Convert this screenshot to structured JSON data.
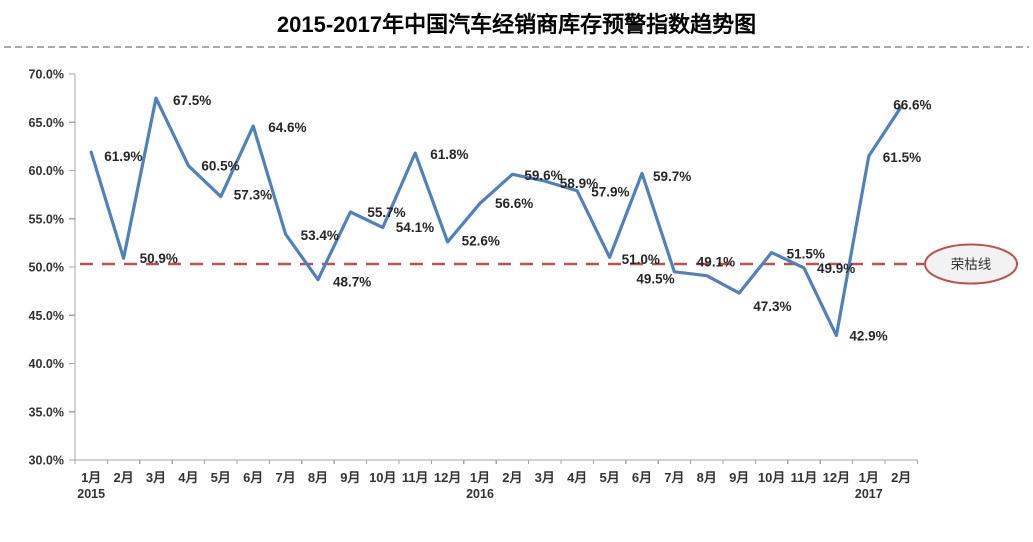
{
  "page": {
    "background": "#FFFFFF"
  },
  "chart_data": {
    "type": "line",
    "title": "2015-2017年中国汽车经销商库存预警指数趋势图",
    "categories": [
      "1月",
      "2月",
      "3月",
      "4月",
      "5月",
      "6月",
      "7月",
      "8月",
      "9月",
      "10月",
      "11月",
      "12月",
      "1月",
      "2月",
      "3月",
      "4月",
      "5月",
      "6月",
      "7月",
      "8月",
      "9月",
      "10月",
      "11月",
      "12月",
      "1月",
      "2月"
    ],
    "year_labels": [
      {
        "index": 0,
        "label": "2015"
      },
      {
        "index": 12,
        "label": "2016"
      },
      {
        "index": 24,
        "label": "2017"
      }
    ],
    "values": [
      61.9,
      50.9,
      67.5,
      60.5,
      57.3,
      64.6,
      53.4,
      48.7,
      55.7,
      54.1,
      61.8,
      52.6,
      56.6,
      59.6,
      58.9,
      57.9,
      51.0,
      59.7,
      49.5,
      49.1,
      47.3,
      51.5,
      49.9,
      42.9,
      61.5,
      66.6
    ],
    "data_labels": [
      "61.9%",
      "50.9%",
      "67.5%",
      "60.5%",
      "57.3%",
      "64.6%",
      "53.4%",
      "48.7%",
      "55.7%",
      "54.1%",
      "61.8%",
      "52.6%",
      "56.6%",
      "59.6%",
      "58.9%",
      "57.9%",
      "51.0%",
      "59.7%",
      "49.5%",
      "49.1%",
      "47.3%",
      "51.5%",
      "49.9%",
      "42.9%",
      "61.5%",
      "66.6%"
    ],
    "xlabel": "",
    "ylabel": "",
    "ylim": [
      30,
      70
    ],
    "ytick_step": 5,
    "ytick_labels": [
      "70.0%",
      "65.0%",
      "60.0%",
      "55.0%",
      "50.0%",
      "45.0%",
      "40.0%",
      "35.0%",
      "30.0%"
    ],
    "grid": false,
    "legend": "none",
    "line_color": "#4F81BD",
    "threshold_line": {
      "value": 50,
      "label": "荣枯线",
      "style": "dashed",
      "color": "#C0504D"
    }
  },
  "colors": {
    "line": "#4F81BD",
    "threshold": "#C0504D",
    "axis": "#A6A6A6",
    "axis_text": "#333333",
    "data_label_text": "#262626",
    "separator": "#ABABAB",
    "badge_fill": "#F2F2F2",
    "title_text": "#000000"
  }
}
